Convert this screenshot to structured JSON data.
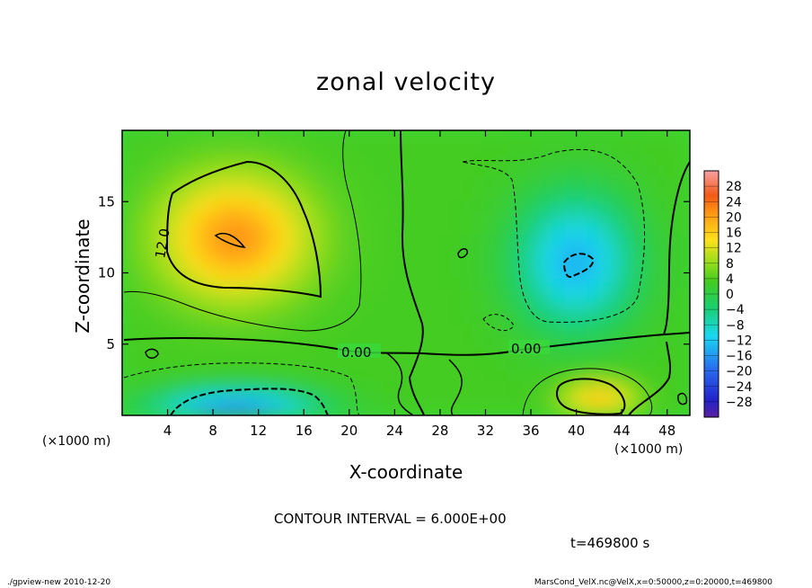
{
  "chart_data": {
    "type": "heatmap",
    "title": "zonal velocity",
    "xlabel": "X-coordinate",
    "ylabel": "Z-coordinate",
    "x_unit_left": "(×1000 m)",
    "x_unit_right": "(×1000 m)",
    "xlim": [
      0,
      50
    ],
    "ylim": [
      0,
      20
    ],
    "x_ticks": [
      "4",
      "8",
      "12",
      "16",
      "20",
      "24",
      "28",
      "32",
      "36",
      "40",
      "44",
      "48"
    ],
    "y_ticks": [
      "5",
      "10",
      "15"
    ],
    "colorbar": {
      "labels": [
        "28",
        "24",
        "20",
        "16",
        "12",
        "8",
        "4",
        "0",
        "−4",
        "−8",
        "−12",
        "−16",
        "−20",
        "−24",
        "−28"
      ],
      "range": [
        -30,
        30
      ]
    },
    "contour_labels": [
      "12.0",
      "0.00",
      "0.00"
    ],
    "contour_interval": "CONTOUR INTERVAL = 6.000E+00",
    "time": "t=469800 s",
    "footer_left": "./gpview-new  2010-12-20",
    "footer_right": "MarsCond_VelX.nc@VelX,x=0:50000,z=0:20000,t=469800",
    "features": [
      {
        "kind": "max",
        "x": 10,
        "z": 12.5,
        "value": 19,
        "sx": 6,
        "sz": 4
      },
      {
        "kind": "max",
        "x": 42,
        "z": 1.2,
        "value": 15,
        "sx": 3,
        "sz": 1.2
      },
      {
        "kind": "min",
        "x": 10,
        "z": 0.3,
        "value": -17,
        "sx": 7,
        "sz": 1.5
      },
      {
        "kind": "min",
        "x": 40,
        "z": 10.8,
        "value": -13,
        "sx": 5,
        "sz": 4.5
      }
    ]
  }
}
